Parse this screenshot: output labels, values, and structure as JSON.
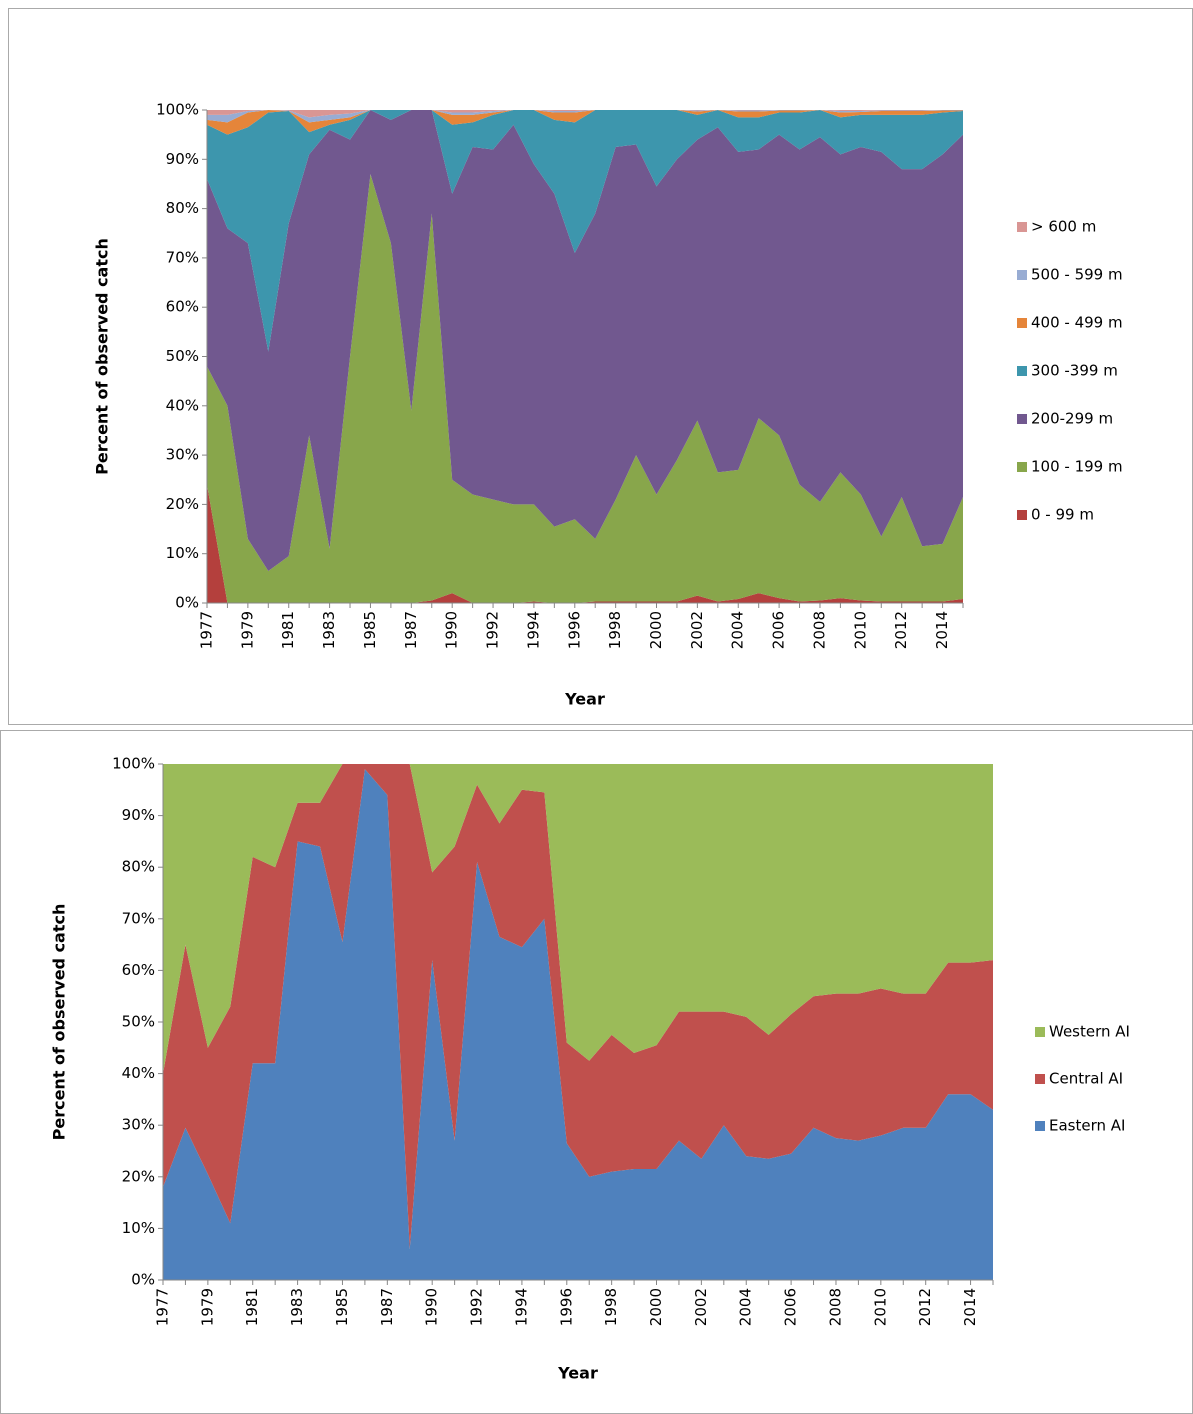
{
  "chart_data": [
    {
      "type": "area",
      "stacked": true,
      "x_label": "Year",
      "y_label": "Percent of observed catch",
      "categories": [
        "1977",
        null,
        "1979",
        null,
        "1981",
        null,
        "1983",
        null,
        "1985",
        null,
        "1987",
        null,
        "1990",
        null,
        "1992",
        null,
        "1994",
        null,
        "1996",
        null,
        "1998",
        null,
        "2000",
        null,
        "2002",
        null,
        "2004",
        null,
        "2006",
        null,
        "2008",
        null,
        "2010",
        null,
        "2012",
        null,
        "2014",
        null
      ],
      "ylim": [
        0,
        100
      ],
      "yticks": [
        {
          "value": 0,
          "label": "0%"
        },
        {
          "value": 10,
          "label": "10%"
        },
        {
          "value": 20,
          "label": "20%"
        },
        {
          "value": 30,
          "label": "30%"
        },
        {
          "value": 40,
          "label": "40%"
        },
        {
          "value": 50,
          "label": "50%"
        },
        {
          "value": 60,
          "label": "60%"
        },
        {
          "value": 70,
          "label": "70%"
        },
        {
          "value": 80,
          "label": "80%"
        },
        {
          "value": 90,
          "label": "90%"
        },
        {
          "value": 100,
          "label": "100%"
        }
      ],
      "legend": "right",
      "series": [
        {
          "name": "0 - 99 m",
          "color": "#b4403d",
          "values": [
            24,
            0,
            0,
            0,
            0,
            0,
            0,
            0,
            0,
            0,
            0,
            0.5,
            2,
            0,
            0,
            0,
            0.3,
            0,
            0,
            0.3,
            0.3,
            0.3,
            0.3,
            0.3,
            1.5,
            0.3,
            0.8,
            2,
            1,
            0.3,
            0.5,
            1,
            0.5,
            0.3,
            0.3,
            0.3,
            0.3,
            0.8
          ]
        },
        {
          "name": "100 - 199 m",
          "color": "#88a64b",
          "values": [
            24,
            40,
            13,
            6.5,
            9.5,
            34,
            11,
            50,
            87,
            73,
            39,
            78.5,
            23,
            22,
            21,
            20,
            19.7,
            15.5,
            17,
            12.7,
            20.7,
            29.7,
            21.7,
            28.7,
            35.5,
            26.2,
            26.2,
            35.5,
            33,
            23.7,
            20,
            25.5,
            21.5,
            13.2,
            21.2,
            11.2,
            11.7,
            20.7
          ]
        },
        {
          "name": "200-299 m",
          "color": "#71588f",
          "values": [
            38,
            36,
            60,
            44.5,
            67.5,
            57,
            85,
            44,
            13,
            25,
            61,
            21,
            58,
            70.5,
            71,
            77,
            69,
            67.5,
            54,
            66,
            71.5,
            63,
            62.5,
            61,
            57,
            70,
            64.5,
            54.5,
            61,
            68,
            74,
            64.5,
            70.5,
            78,
            66.5,
            76.5,
            79,
            73.5
          ]
        },
        {
          "name": "300 -399 m",
          "color": "#3d96ad",
          "values": [
            11,
            19,
            23.5,
            48.5,
            22.8,
            4.5,
            1,
            4,
            0,
            2,
            0,
            0,
            14,
            5,
            7,
            3,
            11,
            15,
            26.5,
            21,
            7.5,
            7,
            15.5,
            10,
            5,
            3.5,
            7,
            6.5,
            4.5,
            7.5,
            5.5,
            7.5,
            6.5,
            7.5,
            11,
            11,
            8.5,
            4.8
          ]
        },
        {
          "name": "400 - 499 m",
          "color": "#e5853a",
          "values": [
            1,
            2.5,
            3,
            0.5,
            0,
            2,
            1,
            0.5,
            0,
            0,
            0,
            0,
            2,
            1.5,
            0.5,
            0,
            0,
            1.5,
            2,
            0,
            0,
            0,
            0,
            0,
            0.7,
            0,
            1.2,
            1.2,
            0.4,
            0.4,
            0,
            1,
            0.6,
            0.8,
            0.8,
            0.8,
            0.4,
            0.1
          ]
        },
        {
          "name": "500 - 599 m",
          "color": "#98acd3",
          "values": [
            1,
            1.5,
            0.3,
            0,
            0.1,
            1,
            1,
            0.8,
            0,
            0,
            0,
            0,
            0.5,
            0.5,
            0.3,
            0,
            0,
            0.3,
            0.3,
            0,
            0,
            0,
            0,
            0,
            0.2,
            0,
            0.2,
            0.2,
            0.1,
            0.1,
            0,
            0.3,
            0.2,
            0.1,
            0.1,
            0.1,
            0.1,
            0.1
          ]
        },
        {
          "name": "> 600 m",
          "color": "#d99694",
          "values": [
            1,
            1,
            0.2,
            0,
            0.1,
            1.5,
            1,
            0.7,
            0,
            0,
            0,
            0,
            0.5,
            0.5,
            0.2,
            0,
            0,
            0.2,
            0.2,
            0,
            0,
            0,
            0,
            0,
            0.1,
            0,
            0.1,
            0.1,
            0,
            0,
            0,
            0.2,
            0.2,
            0.1,
            0.1,
            0.1,
            0,
            0
          ]
        }
      ]
    },
    {
      "type": "area",
      "stacked": true,
      "x_label": "Year",
      "y_label": "Percent of observed catch",
      "categories": [
        "1977",
        null,
        "1979",
        null,
        "1981",
        null,
        "1983",
        null,
        "1985",
        null,
        "1987",
        null,
        "1990",
        null,
        "1992",
        null,
        "1994",
        null,
        "1996",
        null,
        "1998",
        null,
        "2000",
        null,
        "2002",
        null,
        "2004",
        null,
        "2006",
        null,
        "2008",
        null,
        "2010",
        null,
        "2012",
        null,
        "2014",
        null
      ],
      "ylim": [
        0,
        100
      ],
      "yticks": [
        {
          "value": 0,
          "label": "0%"
        },
        {
          "value": 10,
          "label": "10%"
        },
        {
          "value": 20,
          "label": "20%"
        },
        {
          "value": 30,
          "label": "30%"
        },
        {
          "value": 40,
          "label": "40%"
        },
        {
          "value": 50,
          "label": "50%"
        },
        {
          "value": 60,
          "label": "60%"
        },
        {
          "value": 70,
          "label": "70%"
        },
        {
          "value": 80,
          "label": "80%"
        },
        {
          "value": 90,
          "label": "90%"
        },
        {
          "value": 100,
          "label": "100%"
        }
      ],
      "legend": "right",
      "series": [
        {
          "name": "Eastern AI",
          "color": "#4f81bd",
          "values": [
            18,
            29.5,
            20.5,
            11,
            42,
            42,
            85,
            84,
            65.5,
            99,
            94,
            6,
            62,
            27,
            81,
            66.5,
            64.5,
            70,
            26.5,
            20,
            21,
            21.5,
            21.5,
            27,
            23.5,
            30,
            24,
            23.5,
            24.5,
            29.5,
            27.5,
            27,
            28,
            29.5,
            29.5,
            36,
            36,
            33
          ]
        },
        {
          "name": "Central AI",
          "color": "#c0504d",
          "values": [
            22,
            35.5,
            24.5,
            42,
            40,
            38,
            7.5,
            8.5,
            34.5,
            1,
            6,
            94,
            17,
            57,
            15,
            22,
            30.5,
            24.5,
            19.5,
            22.5,
            26.5,
            22.5,
            24,
            25,
            28.5,
            22,
            27,
            24,
            27,
            25.5,
            28,
            28.5,
            28.5,
            26,
            26,
            25.5,
            25.5,
            29
          ]
        },
        {
          "name": "Western AI",
          "color": "#9bbb59",
          "values": [
            60,
            35,
            55,
            47,
            18,
            20,
            7.5,
            7.5,
            0,
            0,
            0,
            0,
            21,
            16,
            4,
            11.5,
            5,
            5.5,
            54,
            57.5,
            52.5,
            56,
            54.5,
            48,
            48,
            48,
            49,
            52.5,
            48.5,
            45,
            44.5,
            44.5,
            43.5,
            44.5,
            44.5,
            38.5,
            38.5,
            38
          ]
        }
      ]
    }
  ]
}
